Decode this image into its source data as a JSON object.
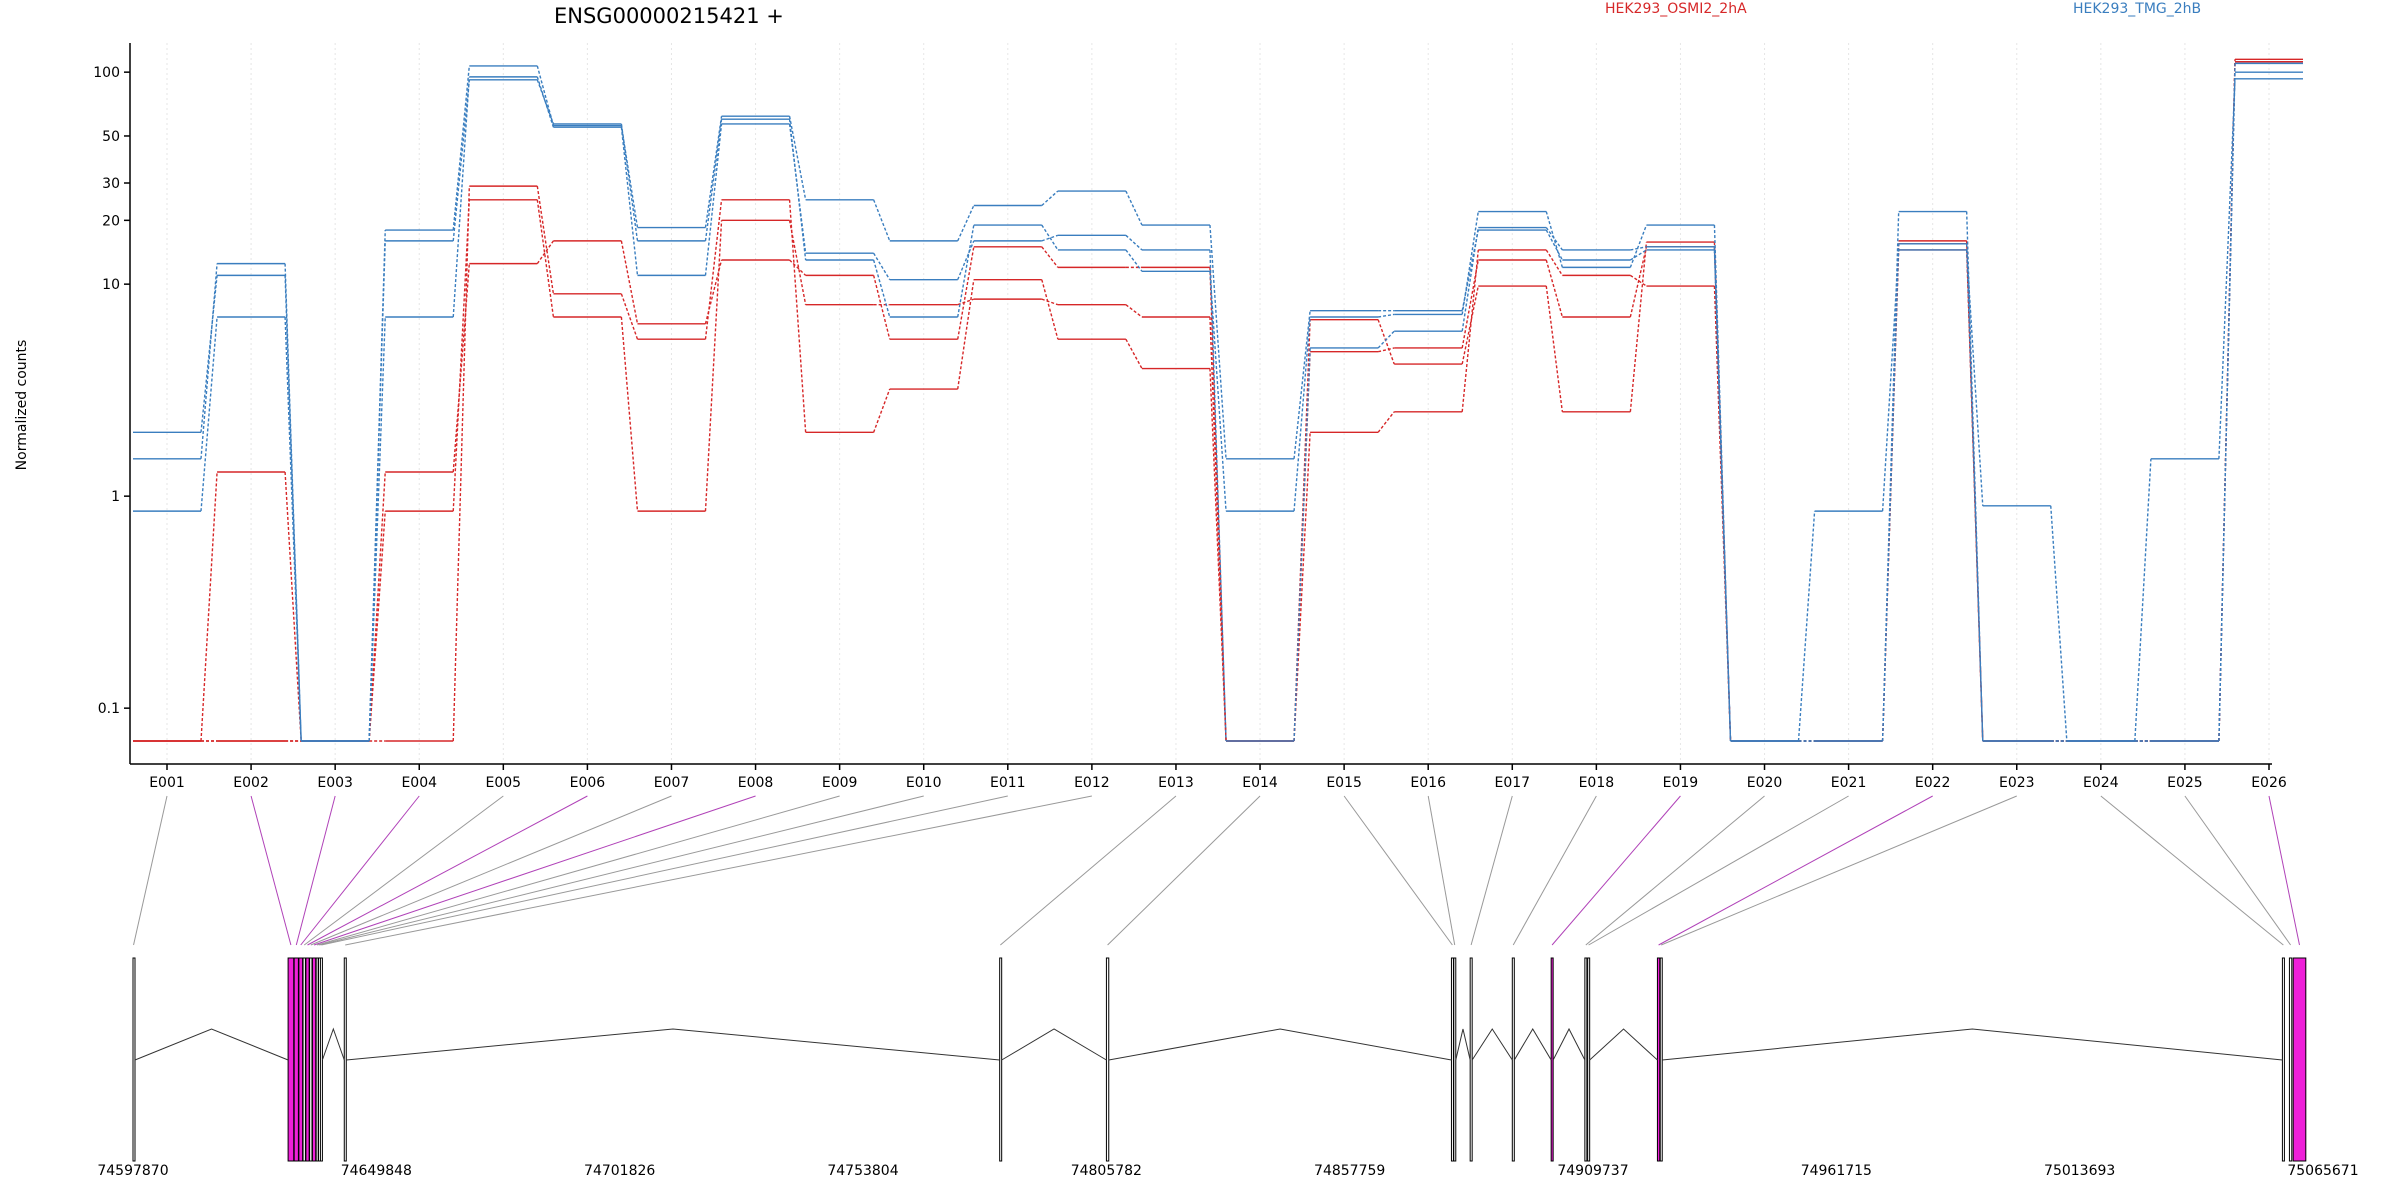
{
  "title": "ENSG00000215421 +",
  "legend": [
    {
      "label": "HEK293_OSMI2_2hA",
      "color": "#d62728"
    },
    {
      "label": "HEK293_TMG_2hB",
      "color": "#3a7ebf"
    }
  ],
  "chart_data": {
    "type": "line",
    "scale": "log",
    "title": "ENSG00000215421 +",
    "ylabel": "Normalized counts",
    "xlabel": "",
    "ylim": [
      0.07,
      130
    ],
    "y_ticks": [
      {
        "value": 100,
        "label": "100"
      },
      {
        "value": 50,
        "label": "50"
      },
      {
        "value": 30,
        "label": "30"
      },
      {
        "value": 20,
        "label": "20"
      },
      {
        "value": 10,
        "label": "10"
      },
      {
        "value": 1,
        "label": "1"
      },
      {
        "value": 0.1,
        "label": "0.1"
      }
    ],
    "categories": [
      "E001",
      "E002",
      "E003",
      "E004",
      "E005",
      "E006",
      "E007",
      "E008",
      "E009",
      "E010",
      "E011",
      "E012",
      "E013",
      "E014",
      "E015",
      "E016",
      "E017",
      "E018",
      "E019",
      "E020",
      "E021",
      "E022",
      "E023",
      "E024",
      "E025",
      "E026"
    ],
    "series": [
      {
        "name": "HEK293_OSMI2_2hA",
        "color": "#d62728",
        "values": [
          0.07,
          0.07,
          0.07,
          0.07,
          29,
          9,
          5.5,
          25,
          2,
          3.2,
          10.5,
          5.5,
          4,
          0.07,
          4.8,
          5,
          13,
          7,
          15,
          0.07,
          0.07,
          14.5,
          0.07,
          0.07,
          0.07,
          115
        ]
      },
      {
        "name": "HEK293_OSMI2_2hA",
        "color": "#d62728",
        "values": [
          0.07,
          1.3,
          0.07,
          0.85,
          25,
          7,
          0.85,
          20,
          8,
          8,
          8.5,
          8,
          7,
          0.07,
          6.8,
          4.2,
          9.8,
          2.5,
          15.8,
          0.07,
          0.07,
          15.5,
          0.07,
          0.07,
          0.07,
          112
        ]
      },
      {
        "name": "HEK293_OSMI2_2hA",
        "color": "#d62728",
        "values": [
          0.07,
          0.07,
          0.07,
          1.3,
          12.5,
          16,
          6.5,
          13,
          11,
          5.5,
          15,
          12,
          12,
          0.07,
          2,
          2.5,
          14.5,
          11,
          9.8,
          0.07,
          0.07,
          16,
          0.07,
          0.07,
          0.07,
          112
        ]
      },
      {
        "name": "HEK293_TMG_2hB",
        "color": "#3a7ebf",
        "values": [
          2,
          11,
          0.07,
          7,
          95,
          55,
          11,
          57,
          14,
          10.5,
          16,
          17,
          14.5,
          0.07,
          5,
          6,
          18.5,
          14.5,
          15,
          0.07,
          0.85,
          14.5,
          0.9,
          0.07,
          0.07,
          100
        ]
      },
      {
        "name": "HEK293_TMG_2hB",
        "color": "#3a7ebf",
        "values": [
          0.85,
          7,
          0.07,
          16,
          92,
          57,
          16,
          60,
          13,
          7,
          19,
          14.5,
          11.5,
          0.85,
          7,
          7.2,
          22,
          12,
          19,
          0.07,
          0.07,
          22,
          0.07,
          0.07,
          1.5,
          93
        ]
      },
      {
        "name": "HEK293_TMG_2hB",
        "color": "#3a7ebf",
        "values": [
          1.5,
          12.5,
          0.07,
          18,
          107,
          56,
          18.5,
          62,
          25,
          16,
          23.5,
          27.5,
          19,
          1.5,
          7.5,
          7.5,
          18,
          13,
          14.5,
          0.07,
          0.07,
          15.5,
          0.07,
          0.07,
          0.07,
          110
        ]
      }
    ],
    "grid": "vertical dotted",
    "legend_position": "top",
    "genomic_axis": {
      "start": 74597870,
      "end": 75065671,
      "tick_labels": [
        "74597870",
        "74649848",
        "74701826",
        "74753804",
        "74805782",
        "74857759",
        "74909737",
        "74961715",
        "75013693",
        "75065671"
      ],
      "exons": [
        {
          "id": "E001",
          "start": 74597870,
          "end": 74598100,
          "highlight": false
        },
        {
          "id": "E002",
          "start": 74631000,
          "end": 74632200,
          "highlight": true
        },
        {
          "id": "E003",
          "start": 74632300,
          "end": 74633200,
          "highlight": true
        },
        {
          "id": "E004",
          "start": 74633300,
          "end": 74634100,
          "highlight": true
        },
        {
          "id": "E005",
          "start": 74634200,
          "end": 74634700,
          "highlight": false
        },
        {
          "id": "E006",
          "start": 74634800,
          "end": 74635500,
          "highlight": true
        },
        {
          "id": "E007",
          "start": 74635600,
          "end": 74636100,
          "highlight": false
        },
        {
          "id": "E008",
          "start": 74636200,
          "end": 74636900,
          "highlight": true
        },
        {
          "id": "E009",
          "start": 74637000,
          "end": 74637400,
          "highlight": false
        },
        {
          "id": "E010",
          "start": 74637500,
          "end": 74637800,
          "highlight": false
        },
        {
          "id": "E011",
          "start": 74637900,
          "end": 74638300,
          "highlight": false
        },
        {
          "id": "E012",
          "start": 74643000,
          "end": 74643400,
          "highlight": false
        },
        {
          "id": "E013",
          "start": 74783000,
          "end": 74783300,
          "highlight": false
        },
        {
          "id": "E014",
          "start": 74805800,
          "end": 74806300,
          "highlight": false
        },
        {
          "id": "E015",
          "start": 74879500,
          "end": 74879900,
          "highlight": false
        },
        {
          "id": "E016",
          "start": 74880000,
          "end": 74880400,
          "highlight": false
        },
        {
          "id": "E017",
          "start": 74883500,
          "end": 74883900,
          "highlight": false
        },
        {
          "id": "E018",
          "start": 74892500,
          "end": 74892900,
          "highlight": false
        },
        {
          "id": "E019",
          "start": 74900800,
          "end": 74901200,
          "highlight": true
        },
        {
          "id": "E020",
          "start": 74908000,
          "end": 74908400,
          "highlight": false
        },
        {
          "id": "E021",
          "start": 74908600,
          "end": 74909000,
          "highlight": false
        },
        {
          "id": "E022",
          "start": 74923500,
          "end": 74924000,
          "highlight": true
        },
        {
          "id": "E023",
          "start": 74924100,
          "end": 74924500,
          "highlight": false
        },
        {
          "id": "E024",
          "start": 75057000,
          "end": 75057400,
          "highlight": false
        },
        {
          "id": "E025",
          "start": 75058500,
          "end": 75059000,
          "highlight": false
        },
        {
          "id": "E026",
          "start": 75059300,
          "end": 75062000,
          "highlight": true
        }
      ]
    }
  }
}
